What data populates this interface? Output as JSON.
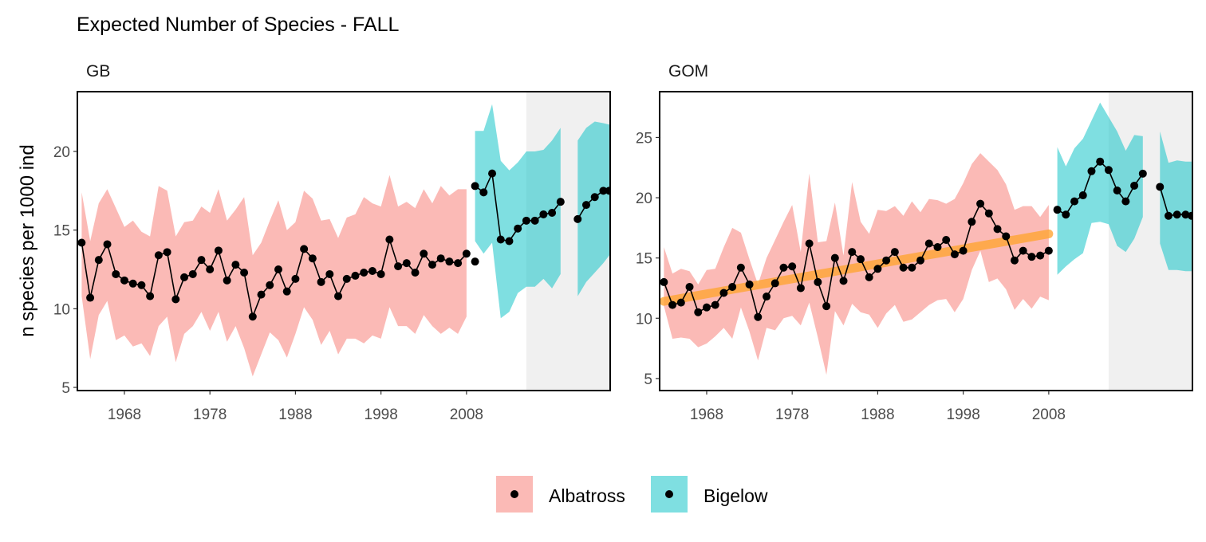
{
  "chart_data": {
    "type": "line",
    "title": "Expected Number of Species - FALL",
    "ylabel": "n species per 1000 ind",
    "xlabel": "",
    "x_ticks": [
      1968,
      1978,
      1988,
      1998,
      2008
    ],
    "legend": {
      "position": "bottom",
      "entries": [
        {
          "name": "Albatross",
          "color": "#f8766d"
        },
        {
          "name": "Bigelow",
          "color": "#00bfc4"
        }
      ]
    },
    "colors": {
      "albatross_band": "#f8766d",
      "bigelow_band": "#00bfc4",
      "trend": "#ffa533",
      "shade": "#dddddd",
      "points": "#000000"
    },
    "panels": [
      {
        "name": "GB",
        "xlim": [
          1962.5,
          2024.8
        ],
        "ylim": [
          4.8,
          23.8
        ],
        "y_ticks": [
          5,
          10,
          15,
          20
        ],
        "shaded_region": [
          2015,
          2024.8
        ],
        "trend": null,
        "albatross": {
          "x": [
            1963,
            1964,
            1965,
            1966,
            1967,
            1968,
            1969,
            1970,
            1971,
            1972,
            1973,
            1974,
            1975,
            1976,
            1977,
            1978,
            1979,
            1980,
            1981,
            1982,
            1983,
            1984,
            1985,
            1986,
            1987,
            1988,
            1989,
            1990,
            1991,
            1992,
            1993,
            1994,
            1995,
            1996,
            1997,
            1998,
            1999,
            2000,
            2001,
            2002,
            2003,
            2004,
            2005,
            2006,
            2007,
            2008
          ],
          "y": [
            14.2,
            10.7,
            13.1,
            14.1,
            12.2,
            11.8,
            11.6,
            11.5,
            10.8,
            13.4,
            13.6,
            10.6,
            12.0,
            12.2,
            13.1,
            12.5,
            13.7,
            11.8,
            12.8,
            12.3,
            9.5,
            10.9,
            11.5,
            12.5,
            11.1,
            11.9,
            13.8,
            13.2,
            11.7,
            12.2,
            10.8,
            11.9,
            12.1,
            12.3,
            12.4,
            12.2,
            14.4,
            12.7,
            12.9,
            12.3,
            13.5,
            12.8,
            13.2,
            13.0,
            12.9,
            13.5
          ],
          "lower": [
            10.8,
            6.8,
            9.6,
            10.5,
            8.0,
            8.3,
            7.6,
            7.8,
            7.0,
            8.9,
            9.5,
            6.6,
            8.4,
            8.9,
            9.8,
            8.6,
            9.8,
            7.9,
            8.9,
            7.5,
            5.7,
            7.1,
            8.5,
            8.0,
            6.9,
            8.4,
            10.1,
            9.3,
            7.7,
            8.6,
            7.1,
            8.1,
            8.1,
            7.8,
            8.3,
            8.1,
            10.1,
            8.9,
            8.9,
            8.4,
            9.6,
            8.9,
            8.4,
            8.8,
            8.4,
            9.5
          ],
          "upper": [
            17.4,
            14.3,
            16.7,
            17.6,
            16.4,
            15.2,
            15.6,
            14.9,
            14.6,
            17.8,
            17.5,
            14.6,
            15.5,
            15.6,
            16.5,
            16.1,
            17.6,
            15.6,
            16.3,
            17.1,
            13.4,
            14.2,
            15.6,
            16.9,
            15.0,
            15.5,
            17.5,
            17.0,
            15.6,
            15.7,
            14.5,
            15.8,
            16.0,
            17.1,
            16.7,
            16.5,
            18.5,
            16.5,
            16.8,
            16.4,
            17.6,
            16.7,
            17.8,
            17.2,
            17.6,
            17.6
          ]
        },
        "albatross_extra": {
          "x": [
            2009
          ],
          "y": [
            13.0
          ],
          "lower": [
            9.4
          ],
          "upper": [
            16.6
          ]
        },
        "bigelow": [
          {
            "x": [
              2009,
              2010,
              2011,
              2012,
              2013,
              2014,
              2015,
              2016,
              2017,
              2018,
              2019
            ],
            "y": [
              17.8,
              17.4,
              18.6,
              14.4,
              14.3,
              15.1,
              15.6,
              15.6,
              16.0,
              16.1,
              16.8
            ],
            "lower": [
              14.3,
              13.5,
              14.2,
              9.4,
              9.8,
              11.0,
              11.4,
              11.4,
              11.9,
              11.3,
              12.2
            ],
            "upper": [
              21.3,
              21.3,
              23.0,
              19.4,
              18.8,
              19.3,
              20.0,
              20.0,
              20.1,
              20.7,
              21.5
            ]
          },
          {
            "x": [
              2021,
              2022,
              2023,
              2024,
              2024.7
            ],
            "y": [
              15.7,
              16.6,
              17.1,
              17.5,
              17.5
            ],
            "lower": [
              10.8,
              11.7,
              12.3,
              12.9,
              13.4
            ],
            "upper": [
              20.7,
              21.5,
              21.9,
              21.8,
              21.7
            ]
          }
        ]
      },
      {
        "name": "GOM",
        "xlim": [
          1962.5,
          2024.8
        ],
        "ylim": [
          4.0,
          28.8
        ],
        "y_ticks": [
          5,
          10,
          15,
          20,
          25
        ],
        "shaded_region": [
          2015,
          2024.8
        ],
        "trend": {
          "x": [
            1963,
            2008
          ],
          "y": [
            11.4,
            17.0
          ]
        },
        "albatross": {
          "x": [
            1963,
            1964,
            1965,
            1966,
            1967,
            1968,
            1969,
            1970,
            1971,
            1972,
            1973,
            1974,
            1975,
            1976,
            1977,
            1978,
            1979,
            1980,
            1981,
            1982,
            1983,
            1984,
            1985,
            1986,
            1987,
            1988,
            1989,
            1990,
            1991,
            1992,
            1993,
            1994,
            1995,
            1996,
            1997,
            1998,
            1999,
            2000,
            2001,
            2002,
            2003,
            2004,
            2005,
            2006,
            2007,
            2008
          ],
          "y": [
            13.0,
            11.1,
            11.3,
            12.6,
            10.5,
            10.9,
            11.1,
            12.1,
            12.6,
            14.2,
            12.8,
            10.1,
            11.8,
            12.9,
            14.2,
            14.3,
            12.5,
            16.2,
            13.0,
            11.0,
            15.0,
            13.1,
            15.5,
            14.9,
            13.4,
            14.1,
            14.8,
            15.5,
            14.2,
            14.2,
            14.8,
            16.2,
            15.9,
            16.5,
            15.3,
            15.6,
            18.0,
            19.5,
            18.7,
            17.4,
            16.8,
            14.8,
            15.6,
            15.1,
            15.2,
            15.6
          ],
          "lower": [
            11.0,
            8.3,
            8.4,
            8.3,
            7.6,
            7.9,
            8.5,
            9.2,
            8.3,
            10.9,
            8.9,
            6.5,
            9.2,
            9.0,
            10.0,
            10.2,
            9.4,
            11.3,
            8.4,
            5.3,
            10.6,
            9.4,
            11.2,
            10.5,
            10.3,
            9.2,
            10.4,
            11.1,
            9.7,
            9.9,
            10.5,
            11.1,
            11.5,
            11.6,
            10.5,
            11.6,
            14.0,
            15.6,
            13.0,
            13.3,
            12.4,
            10.7,
            11.6,
            10.8,
            11.8,
            11.5
          ],
          "upper": [
            15.9,
            13.7,
            14.1,
            13.9,
            12.8,
            14.0,
            14.1,
            15.9,
            17.5,
            17.1,
            14.9,
            12.8,
            15.0,
            16.5,
            18.0,
            19.4,
            15.5,
            22.0,
            16.3,
            16.4,
            19.6,
            15.2,
            21.3,
            18.0,
            17.0,
            19.0,
            18.9,
            19.3,
            18.5,
            19.7,
            18.8,
            19.9,
            19.8,
            19.5,
            19.9,
            21.2,
            22.8,
            23.7,
            23.0,
            22.3,
            21.1,
            19.0,
            19.3,
            19.3,
            18.4,
            19.4
          ]
        },
        "albatross_extra": null,
        "bigelow": [
          {
            "x": [
              2009,
              2010,
              2011,
              2012,
              2013,
              2014,
              2015,
              2016,
              2017,
              2018,
              2019
            ],
            "y": [
              19.0,
              18.6,
              19.7,
              20.2,
              22.2,
              23.0,
              22.3,
              20.6,
              19.7,
              21.0,
              22.0
            ],
            "lower": [
              13.6,
              14.3,
              14.9,
              15.4,
              17.9,
              18.0,
              17.8,
              16.0,
              15.5,
              16.6,
              18.4
            ],
            "upper": [
              24.2,
              22.6,
              24.1,
              24.9,
              26.4,
              27.9,
              26.7,
              25.5,
              23.9,
              25.2,
              25.1
            ]
          },
          {
            "x": [
              2021,
              2022,
              2023,
              2024,
              2024.7
            ],
            "y": [
              20.9,
              18.5,
              18.6,
              18.6,
              18.5
            ],
            "lower": [
              16.2,
              14.0,
              14.0,
              13.9,
              13.9
            ],
            "upper": [
              25.5,
              22.9,
              23.1,
              23.0,
              23.0
            ]
          }
        ]
      }
    ]
  }
}
